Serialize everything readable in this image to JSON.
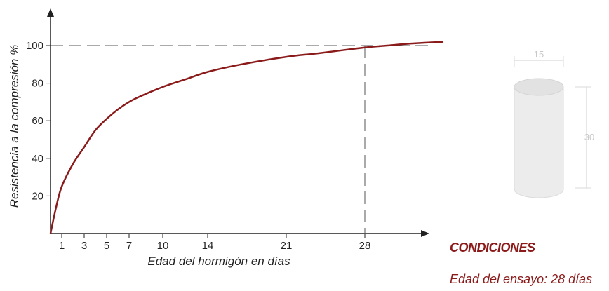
{
  "chart_data": {
    "type": "line",
    "xlabel": "Edad del hormigón en días",
    "ylabel": "Resistencia a la compresión %",
    "x_ticks": [
      1,
      3,
      5,
      7,
      10,
      14,
      21,
      28
    ],
    "y_ticks": [
      20,
      40,
      60,
      80,
      100
    ],
    "xlim": [
      0,
      35
    ],
    "ylim": [
      0,
      115
    ],
    "grid": false,
    "series": [
      {
        "color": "#8b1a1a",
        "x": [
          0,
          0.5,
          1,
          2,
          3,
          4,
          5,
          6,
          7,
          8,
          10,
          12,
          14,
          17,
          21,
          24,
          28,
          30,
          32,
          35
        ],
        "y": [
          0,
          14,
          25,
          37,
          46,
          55,
          61,
          66,
          70,
          73,
          78,
          82,
          86,
          90,
          94,
          96,
          99,
          100,
          101,
          102
        ]
      }
    ],
    "reference_lines": [
      {
        "axis": "y",
        "value": 100,
        "style": "dashed"
      },
      {
        "axis": "x",
        "value": 28,
        "style": "dashed"
      }
    ]
  },
  "specimen": {
    "diameter_label": "15",
    "height_label": "30"
  },
  "conditions": {
    "title": "CONDICIONES",
    "age": "Edad del ensayo: 28 días"
  }
}
